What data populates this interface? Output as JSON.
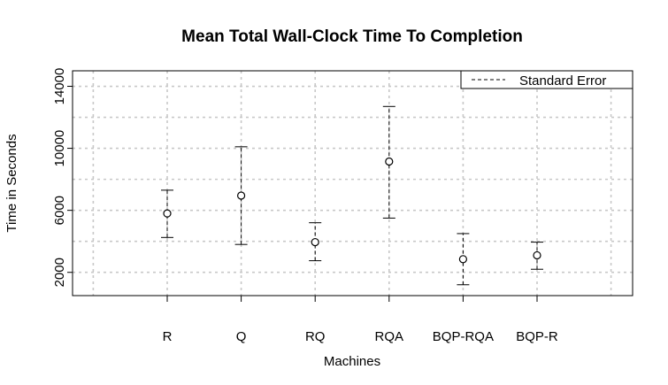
{
  "chart_data": {
    "type": "scatter",
    "title": "Mean Total Wall-Clock Time To Completion",
    "xlabel": "Machines",
    "ylabel": "Time in Seconds",
    "categories": [
      "R",
      "Q",
      "RQ",
      "RQA",
      "BQP-RQA",
      "BQP-R"
    ],
    "means": [
      5800,
      6950,
      3950,
      9150,
      2850,
      3100
    ],
    "error_low": [
      4250,
      3800,
      2750,
      5500,
      1200,
      2200
    ],
    "error_high": [
      7300,
      10100,
      5200,
      12700,
      4500,
      3950
    ],
    "ylim": [
      500,
      15000
    ],
    "yticks": [
      2000,
      6000,
      10000,
      14000
    ],
    "ytick_labels": [
      "2000",
      "6000",
      "10000",
      "14000"
    ],
    "grid": true,
    "legend": {
      "placement": "top-right",
      "entries": [
        "Standard Error"
      ]
    }
  }
}
